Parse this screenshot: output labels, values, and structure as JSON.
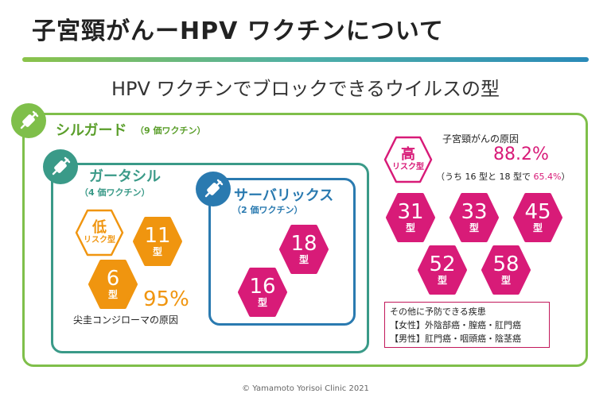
{
  "header": {
    "title": "子宮頸がんーHPV ワクチンについて",
    "subtitle": "HPV ワクチンでブロックできるウイルスの型"
  },
  "silgard": {
    "name": "シルガード",
    "valency": "（9 価ワクチン）"
  },
  "gardasil": {
    "name": "ガータシル",
    "valency": "（4 価ワクチン）"
  },
  "cervarix": {
    "name": "サーバリックス",
    "valency": "（2 価ワクチン）"
  },
  "low_risk": {
    "label_big": "低",
    "label_small": "リスク型",
    "types": [
      {
        "num": "11",
        "unit": "型"
      },
      {
        "num": "6",
        "unit": "型"
      }
    ],
    "percent": "95%",
    "caption": "尖圭コンジローマの原因"
  },
  "serv_types": [
    {
      "num": "18",
      "unit": "型"
    },
    {
      "num": "16",
      "unit": "型"
    }
  ],
  "high_risk": {
    "label_big": "高",
    "label_small": "リスク型",
    "cause_label": "子宮頸がんの原因",
    "percent": "88.2%",
    "sub_note_prefix": "（うち 16 型と 18 型で",
    "sub_note_percent": "65.4%",
    "sub_note_suffix": "）",
    "types": [
      {
        "num": "31",
        "unit": "型"
      },
      {
        "num": "33",
        "unit": "型"
      },
      {
        "num": "45",
        "unit": "型"
      },
      {
        "num": "52",
        "unit": "型"
      },
      {
        "num": "58",
        "unit": "型"
      }
    ]
  },
  "other_diseases": {
    "title": "その他に予防できる疾患",
    "female": "【女性】外陰部癌・膣癌・肛門癌",
    "male": "【男性】肛門癌・咽頭癌・陰茎癌"
  },
  "footer": "© Yamamoto Yorisoi Clinic 2021",
  "colors": {
    "green": "#7fbf4a",
    "teal": "#3a9a88",
    "blue": "#2a7ab0",
    "orange": "#f0950f",
    "magenta": "#d81b78"
  }
}
